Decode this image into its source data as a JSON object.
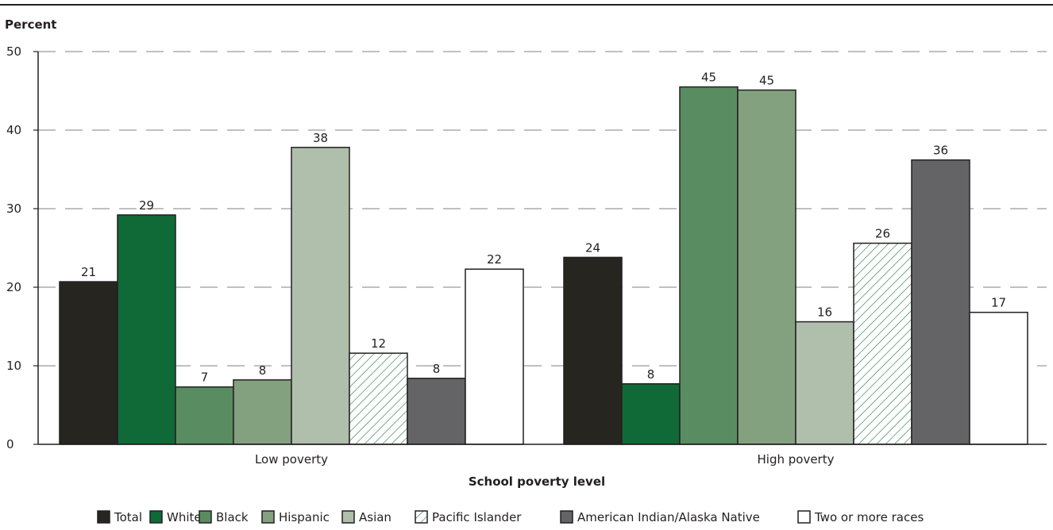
{
  "chart_data": {
    "type": "bar",
    "ylabel": "Percent",
    "xlabel": "School poverty level",
    "ylim": [
      0,
      50
    ],
    "yticks": [
      0,
      10,
      20,
      30,
      40,
      50
    ],
    "grid": true,
    "legend_position": "bottom",
    "categories": [
      "Low poverty",
      "High poverty"
    ],
    "series": [
      {
        "name": "Total",
        "values": [
          20.7,
          23.8
        ],
        "labels": [
          "21",
          "24"
        ],
        "color": "#262520",
        "pattern": "solid"
      },
      {
        "name": "White",
        "values": [
          29.2,
          7.7
        ],
        "labels": [
          "29",
          "8"
        ],
        "color": "#0f6a37",
        "pattern": "solid"
      },
      {
        "name": "Black",
        "values": [
          7.3,
          45.5
        ],
        "labels": [
          "7",
          "45"
        ],
        "color": "#5a8c61",
        "pattern": "solid"
      },
      {
        "name": "Hispanic",
        "values": [
          8.2,
          45.1
        ],
        "labels": [
          "8",
          "45"
        ],
        "color": "#84a17f",
        "pattern": "solid"
      },
      {
        "name": "Asian",
        "values": [
          37.8,
          15.6
        ],
        "labels": [
          "38",
          "16"
        ],
        "color": "#afbfab",
        "pattern": "solid"
      },
      {
        "name": "Pacific Islander",
        "values": [
          11.6,
          25.6
        ],
        "labels": [
          "12",
          "26"
        ],
        "color": "#ffffff",
        "pattern": "hatch"
      },
      {
        "name": "American Indian/Alaska Native",
        "values": [
          8.4,
          36.2
        ],
        "labels": [
          "8",
          "36"
        ],
        "color": "#646466",
        "pattern": "solid"
      },
      {
        "name": "Two or more races",
        "values": [
          22.3,
          16.8
        ],
        "labels": [
          "22",
          "17"
        ],
        "color": "#ffffff",
        "pattern": "solid"
      }
    ]
  },
  "colors": {
    "axis": "#231f20",
    "grid": "#9a9a9a",
    "bar_stroke": "#231f20",
    "hatch": "#2e7d4f"
  }
}
